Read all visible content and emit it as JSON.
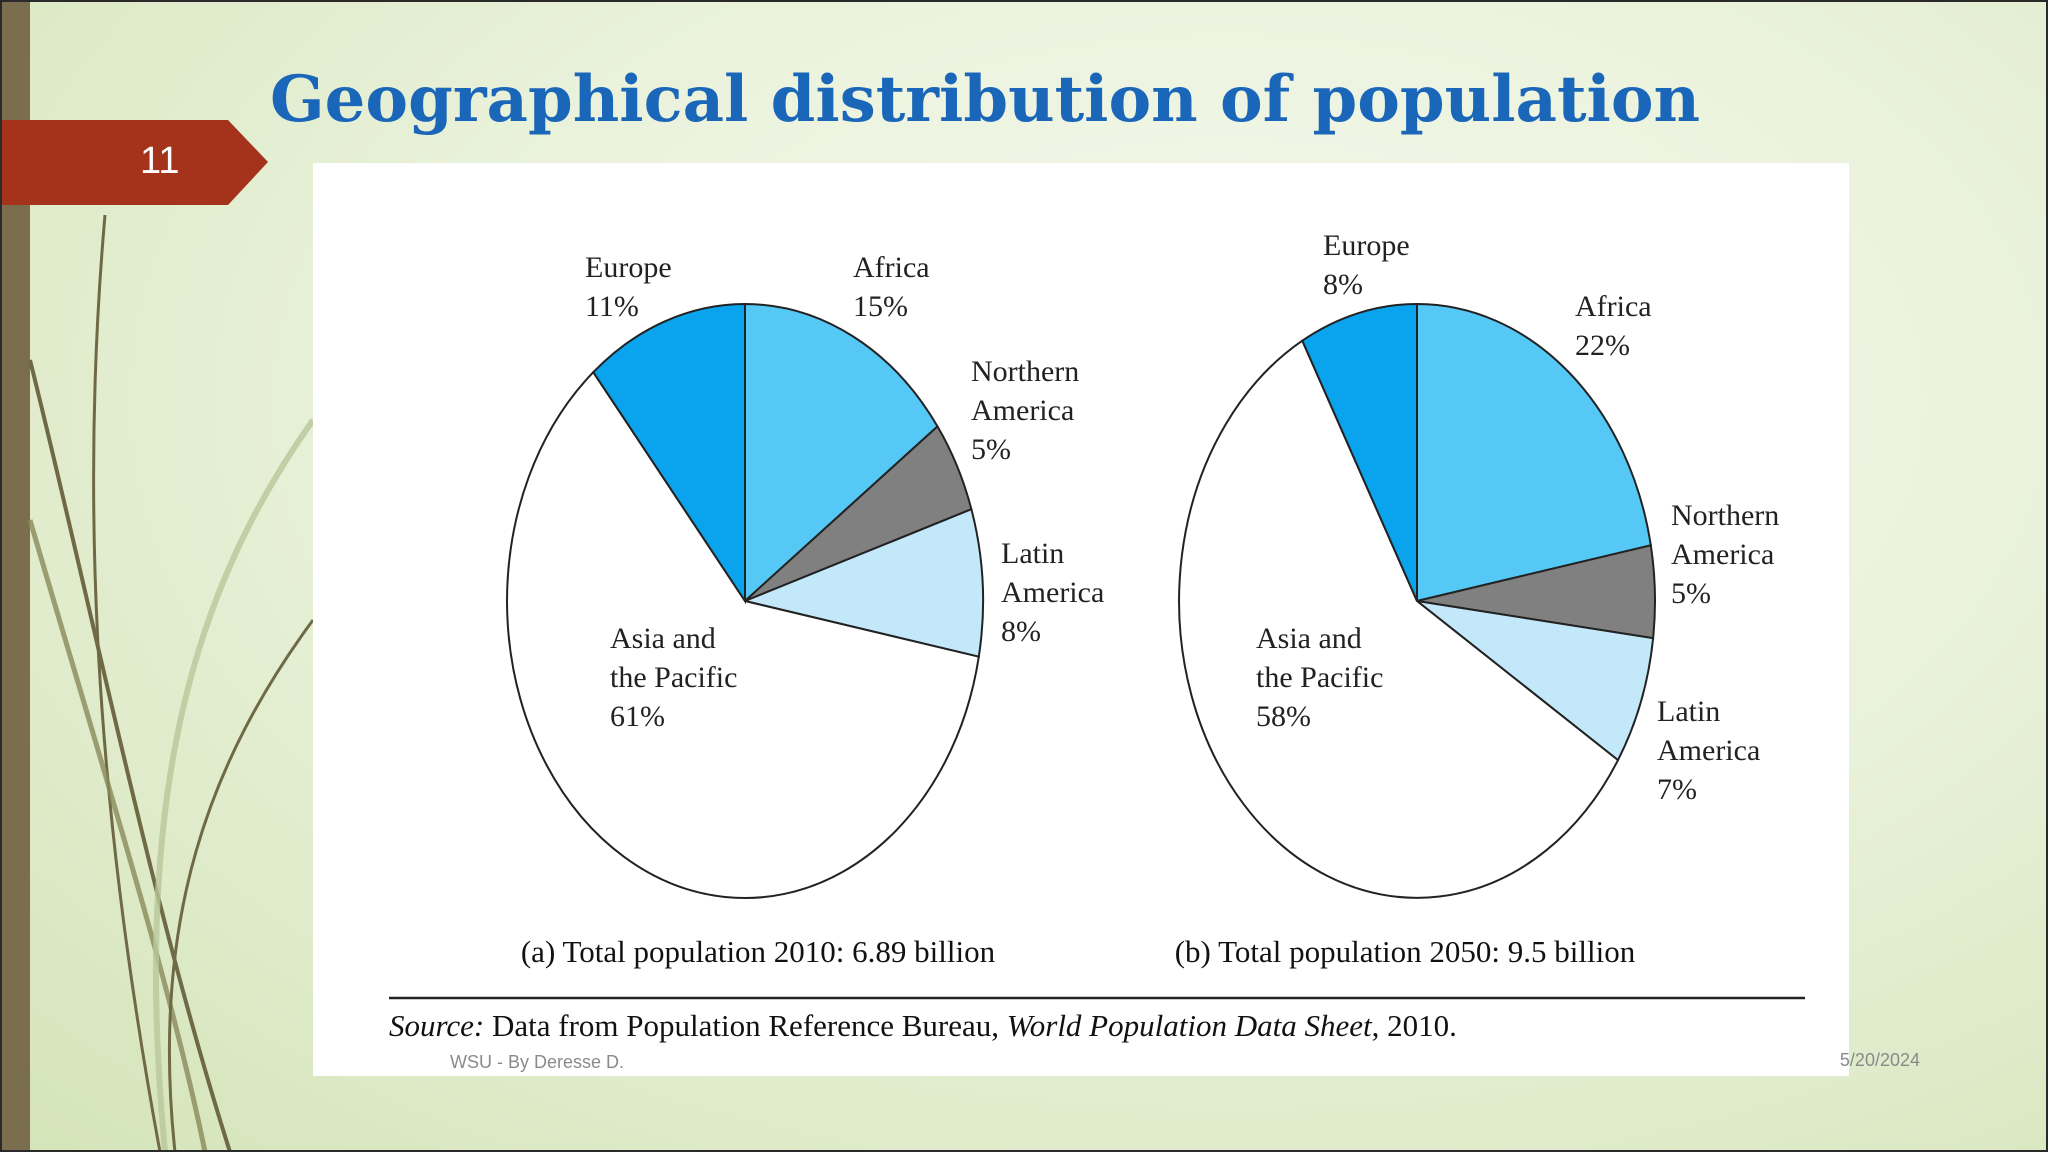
{
  "slide": {
    "number": "11",
    "title": "Geographical distribution of population",
    "footer_left": "WSU - By Deresse D.",
    "footer_right": "5/20/2024"
  },
  "colors": {
    "title": "#1a66b8",
    "number_tag": "#a5321a",
    "europe": "#0aa3ee",
    "africa": "#56c8f5",
    "northern_america": "#808080",
    "latin_america": "#c2e8fa",
    "asia_pacific": "#ffffff"
  },
  "chart_data": [
    {
      "type": "pie",
      "caption": "(a) Total population 2010: 6.89 billion",
      "slices": [
        {
          "name_lines": [
            "Africa"
          ],
          "pct_label": "15%",
          "value": 15,
          "color": "#56c8f5"
        },
        {
          "name_lines": [
            "Northern",
            "America"
          ],
          "pct_label": "5%",
          "value": 5,
          "color": "#808080"
        },
        {
          "name_lines": [
            "Latin",
            "America"
          ],
          "pct_label": "8%",
          "value": 8,
          "color": "#c2e8fa"
        },
        {
          "name_lines": [
            "Asia and",
            "the Pacific"
          ],
          "pct_label": "61%",
          "value": 61,
          "color": "#ffffff"
        },
        {
          "name_lines": [
            "Europe"
          ],
          "pct_label": "11%",
          "value": 11,
          "color": "#0aa3ee"
        }
      ]
    },
    {
      "type": "pie",
      "caption": "(b) Total population 2050: 9.5 billion",
      "slices": [
        {
          "name_lines": [
            "Africa"
          ],
          "pct_label": "22%",
          "value": 22,
          "color": "#56c8f5"
        },
        {
          "name_lines": [
            "Northern",
            "America"
          ],
          "pct_label": "5%",
          "value": 5,
          "color": "#808080"
        },
        {
          "name_lines": [
            "Latin",
            "America"
          ],
          "pct_label": "7%",
          "value": 7,
          "color": "#c2e8fa"
        },
        {
          "name_lines": [
            "Asia and",
            "the Pacific"
          ],
          "pct_label": "58%",
          "value": 58,
          "color": "#ffffff"
        },
        {
          "name_lines": [
            "Europe"
          ],
          "pct_label": "8%",
          "value": 8,
          "color": "#0aa3ee"
        }
      ]
    }
  ],
  "source": {
    "prefix": "Source:",
    "text_a": " Data from Population Reference Bureau, ",
    "text_italic": "World Population Data Sheet",
    "text_b": ", 2010."
  }
}
